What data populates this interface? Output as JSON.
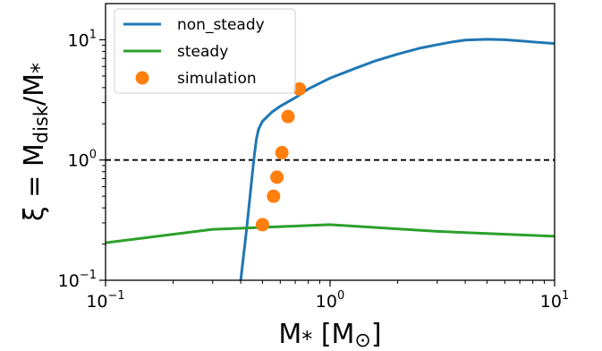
{
  "chart_data": {
    "type": "line",
    "xscale": "log",
    "yscale": "log",
    "xlim": [
      0.1,
      10
    ],
    "ylim": [
      0.1,
      20
    ],
    "xlabel": "M* [M⊙]",
    "ylabel": "ξ = Mdisk/M*",
    "x_ticks": [
      {
        "value": 0.1,
        "base": "10",
        "exp": "−1"
      },
      {
        "value": 1,
        "base": "10",
        "exp": "0"
      },
      {
        "value": 10,
        "base": "10",
        "exp": "1"
      }
    ],
    "y_ticks": [
      {
        "value": 0.1,
        "base": "10",
        "exp": "−1"
      },
      {
        "value": 1,
        "base": "10",
        "exp": "0"
      },
      {
        "value": 10,
        "base": "10",
        "exp": "1"
      }
    ],
    "reference_line": {
      "y": 1,
      "style": "dashed",
      "color": "#000000"
    },
    "legend_position": "upper-left",
    "series": [
      {
        "name": "non_steady",
        "kind": "line",
        "color": "#1f77b4",
        "x": [
          0.4,
          0.41,
          0.42,
          0.43,
          0.44,
          0.45,
          0.46,
          0.47,
          0.48,
          0.5,
          0.55,
          0.6,
          0.7,
          0.8,
          1.0,
          1.3,
          1.6,
          2.0,
          2.5,
          3.0,
          3.5,
          4.0,
          5.0,
          6.0,
          7.0,
          8.0,
          10.0
        ],
        "y": [
          0.1,
          0.15,
          0.22,
          0.33,
          0.5,
          0.75,
          1.1,
          1.5,
          1.8,
          2.1,
          2.5,
          2.8,
          3.3,
          3.9,
          4.8,
          5.8,
          6.7,
          7.6,
          8.5,
          9.1,
          9.6,
          9.95,
          10.1,
          10.0,
          9.8,
          9.6,
          9.3
        ]
      },
      {
        "name": "steady",
        "kind": "line",
        "color": "#2ca02c",
        "x": [
          0.1,
          0.3,
          1.0,
          3.0,
          10.0
        ],
        "y": [
          0.205,
          0.265,
          0.29,
          0.255,
          0.232
        ]
      },
      {
        "name": "simulation",
        "kind": "scatter",
        "color": "#ff7f0e",
        "x": [
          0.5,
          0.56,
          0.58,
          0.61,
          0.65,
          0.73
        ],
        "y": [
          0.29,
          0.5,
          0.72,
          1.15,
          2.3,
          3.9
        ]
      }
    ]
  }
}
